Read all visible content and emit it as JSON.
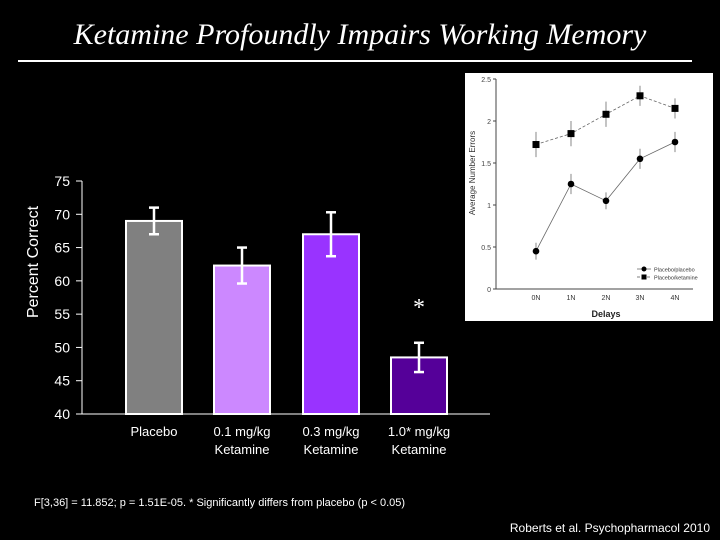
{
  "title": "Ketamine Profoundly Impairs Working Memory",
  "stats_note": "F[3,36] = 11.852; p = 1.51E-05.  * Significantly differs from placebo (p < 0.05)",
  "citation": "Roberts et al. Psychopharmacol 2010",
  "chart_data": [
    {
      "type": "bar",
      "ylabel": "Percent Correct",
      "ylim": [
        40,
        75
      ],
      "yticks": [
        40,
        45,
        50,
        55,
        60,
        65,
        70,
        75
      ],
      "categories": [
        [
          "Placebo"
        ],
        [
          "0.1 mg/kg",
          "Ketamine"
        ],
        [
          "0.3 mg/kg",
          "Ketamine"
        ],
        [
          "1.0* mg/kg",
          "Ketamine"
        ]
      ],
      "values": [
        69,
        62.3,
        67,
        48.5
      ],
      "errors": [
        2,
        2.7,
        3.3,
        2.2
      ],
      "colors": [
        "#808080",
        "#cc88ff",
        "#9933ff",
        "#550099"
      ],
      "annotation": "*",
      "annotation_index": 3
    },
    {
      "type": "line",
      "ylabel": "Average Number Errors",
      "xlabel": "Delays",
      "categories": [
        "0N",
        "1N",
        "2N",
        "3N",
        "4N"
      ],
      "ylim": [
        0,
        2.5
      ],
      "yticks": [
        "0",
        "0.5",
        "1",
        "1.5",
        "2",
        "2.5"
      ],
      "series": [
        {
          "name": "Placebo/placebo",
          "marker": "circle",
          "values": [
            0.45,
            1.25,
            1.05,
            1.55,
            1.75
          ],
          "errors": [
            0.1,
            0.12,
            0.1,
            0.12,
            0.12
          ]
        },
        {
          "name": "Placebo/ketamine",
          "marker": "square",
          "values": [
            1.72,
            1.85,
            2.08,
            2.3,
            2.15
          ],
          "errors": [
            0.15,
            0.15,
            0.15,
            0.12,
            0.12
          ]
        }
      ]
    }
  ]
}
